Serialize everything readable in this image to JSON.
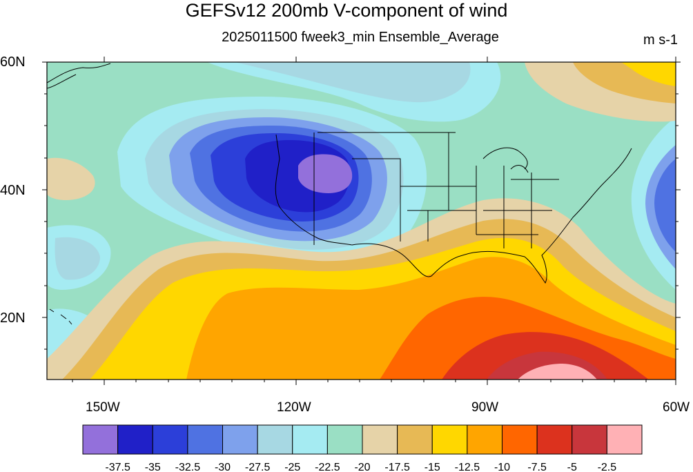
{
  "title": "GEFSv12 200mb V-component of wind",
  "subtitle": "2025011500 fweek3_min Ensemble_Average",
  "units": "m s-1",
  "lat_labels": [
    "60N",
    "40N",
    "20N"
  ],
  "lon_labels": [
    "150W",
    "120W",
    "90W",
    "60W"
  ],
  "colorbar": {
    "colors": [
      "#9370db",
      "#2020c8",
      "#2c3fd9",
      "#4f72e2",
      "#7ea1ec",
      "#a7d8e3",
      "#a5ebf2",
      "#9adfc4",
      "#e6d3a8",
      "#e7b955",
      "#ffd700",
      "#ffa500",
      "#ff6600",
      "#dc321e",
      "#c8363c",
      "#ffb1b5"
    ],
    "labels": [
      "-37.5",
      "-35",
      "-32.5",
      "-30",
      "-27.5",
      "-25",
      "-22.5",
      "-20",
      "-17.5",
      "-15",
      "-12.5",
      "-10",
      "-7.5",
      "-5",
      "-2.5"
    ]
  }
}
